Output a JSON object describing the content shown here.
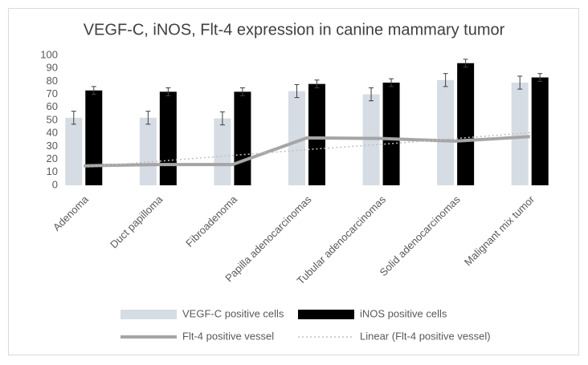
{
  "chart_data": {
    "type": "bar",
    "title": "VEGF-C, iNOS, Flt-4 expression in canine mammary tumor",
    "categories": [
      "Adenoma",
      "Duct papilloma",
      "Fibroadenoma",
      "Papilla adenocarcinomas",
      "Tubular adenocarcinomas",
      "Solid adenocarcinomas",
      "Malignant mix tumor"
    ],
    "series": [
      {
        "name": "VEGF-C positive cells",
        "type": "bar",
        "color": "#d6dce4",
        "values": [
          52,
          52,
          51.5,
          72.5,
          70,
          81,
          79
        ],
        "errors": [
          5,
          5,
          5,
          5,
          5,
          5,
          5
        ]
      },
      {
        "name": "iNOS positive cells",
        "type": "bar",
        "color": "#000000",
        "values": [
          73,
          72,
          72,
          78,
          79,
          94,
          83
        ],
        "errors": [
          3,
          3,
          3,
          3,
          3,
          3,
          3
        ]
      },
      {
        "name": "Flt-4 positive vessel",
        "type": "line",
        "color": "#a5a5a5",
        "values": [
          15,
          16,
          16,
          36.5,
          36,
          34,
          37.5
        ]
      },
      {
        "name": "Linear (Flt-4 positive vessel)",
        "type": "trendline",
        "color": "#bfbfbf",
        "values": [
          14,
          18.5,
          23,
          27.5,
          31.5,
          36,
          40.5
        ]
      }
    ],
    "ylim": [
      0,
      100
    ],
    "yticks": [
      0,
      10,
      20,
      30,
      40,
      50,
      60,
      70,
      80,
      90,
      100
    ],
    "grid": false,
    "legend": "bottom"
  }
}
